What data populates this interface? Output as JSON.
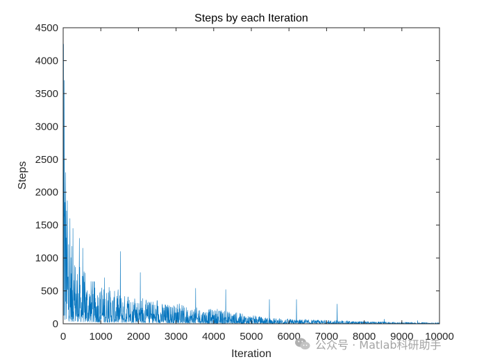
{
  "chart_data": {
    "type": "line",
    "title": "Steps by each Iteration",
    "xlabel": "Iteration",
    "ylabel": "Steps",
    "xlim": [
      0,
      10000
    ],
    "ylim": [
      0,
      4500
    ],
    "xticks": [
      0,
      1000,
      2000,
      3000,
      4000,
      5000,
      6000,
      7000,
      8000,
      9000,
      10000
    ],
    "yticks": [
      0,
      500,
      1000,
      1500,
      2000,
      2500,
      3000,
      3500,
      4000,
      4500
    ],
    "grid": false,
    "series": [
      {
        "color": "#0072BD",
        "envelope": {
          "x": [
            0,
            20,
            50,
            100,
            150,
            200,
            300,
            400,
            500,
            700,
            1000,
            1500,
            2000,
            2500,
            3000,
            3500,
            4000,
            4500,
            5000,
            5500,
            6000,
            7000,
            8000,
            9000,
            10000
          ],
          "typical_peak": [
            4200,
            3400,
            2300,
            1700,
            1400,
            1250,
            1050,
            950,
            850,
            700,
            580,
            470,
            390,
            330,
            290,
            250,
            220,
            180,
            130,
            90,
            70,
            55,
            35,
            25,
            15
          ],
          "floor": [
            60,
            50,
            45,
            40,
            38,
            36,
            32,
            30,
            28,
            25,
            22,
            20,
            18,
            15,
            12,
            10,
            8,
            6,
            5,
            4,
            3,
            3,
            2,
            2,
            2
          ]
        },
        "spikes": [
          {
            "x": 10,
            "y": 4250
          },
          {
            "x": 30,
            "y": 3700
          },
          {
            "x": 60,
            "y": 2300
          },
          {
            "x": 110,
            "y": 1870
          },
          {
            "x": 180,
            "y": 1600
          },
          {
            "x": 260,
            "y": 1450
          },
          {
            "x": 430,
            "y": 1300
          },
          {
            "x": 520,
            "y": 1150
          },
          {
            "x": 1520,
            "y": 1100
          },
          {
            "x": 1100,
            "y": 700
          },
          {
            "x": 2050,
            "y": 780
          },
          {
            "x": 3520,
            "y": 540
          },
          {
            "x": 4320,
            "y": 520
          },
          {
            "x": 5480,
            "y": 370
          },
          {
            "x": 6200,
            "y": 370
          },
          {
            "x": 7280,
            "y": 300
          },
          {
            "x": 8530,
            "y": 70
          },
          {
            "x": 9420,
            "y": 50
          }
        ]
      }
    ]
  },
  "watermark": {
    "icon": "wechat-icon",
    "text": "公众号 · Matlab科研助手"
  }
}
